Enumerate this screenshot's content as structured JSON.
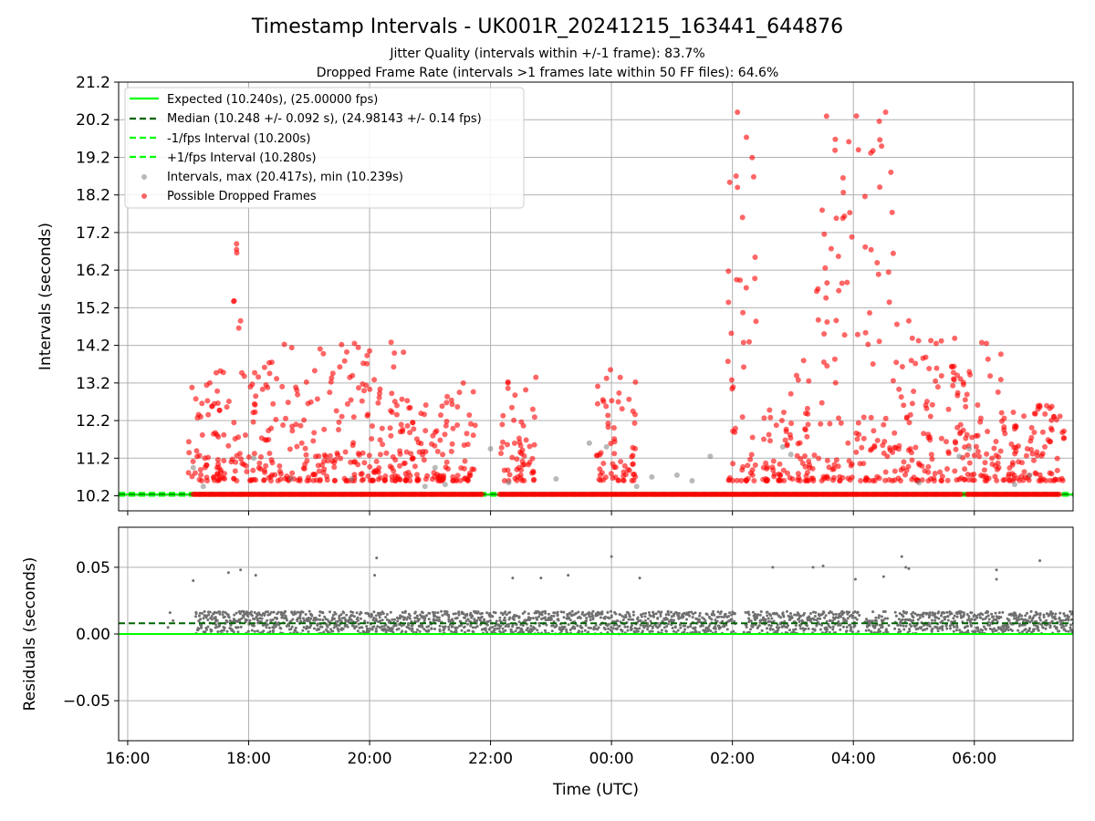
{
  "chart_data": [
    {
      "type": "scatter",
      "title": "Timestamp Intervals - UK001R_20241215_163441_644876",
      "subtitle_1": "Jitter Quality (intervals within +/-1 frame): 83.7%",
      "subtitle_2": "Dropped Frame Rate (intervals >1 frames late within 50 FF files): 64.6%",
      "xlabel": "",
      "ylabel": "Intervals (seconds)",
      "xlim": [
        "15:51",
        "07:38"
      ],
      "ylim": [
        9.8,
        21.2
      ],
      "yticks": [
        "10.2",
        "11.2",
        "12.2",
        "13.2",
        "14.2",
        "15.2",
        "16.2",
        "17.2",
        "18.2",
        "19.2",
        "20.2",
        "21.2"
      ],
      "grid": true,
      "legend_position": "upper-left",
      "legend": [
        "Expected (10.240s), (25.00000 fps)",
        "Median (10.248 +/- 0.092 s), (24.98143 +/- 0.14 fps)",
        "-1/fps Interval (10.200s)",
        "+1/fps Interval (10.280s)",
        "Intervals, max (20.417s), min (10.239s)",
        "Possible Dropped Frames"
      ],
      "reference_lines": [
        {
          "name": "Expected",
          "y": 10.24,
          "color": "#00ff00",
          "style": "solid"
        },
        {
          "name": "Median",
          "y": 10.248,
          "color": "#006400",
          "style": "dashed"
        },
        {
          "name": "-1/fps Interval",
          "y": 10.2,
          "color": "#00ff00",
          "style": "dashed"
        },
        {
          "name": "+1/fps Interval",
          "y": 10.28,
          "color": "#00ff00",
          "style": "dashed"
        }
      ],
      "series_colors": {
        "intervals": "#808080",
        "dropped": "#ff0000"
      },
      "series": [
        {
          "name": "Possible Dropped Frames",
          "bands": [
            {
              "t_start": "17:00",
              "t_end": "17:44",
              "min": 10.6,
              "max": 13.5
            },
            {
              "t_start": "17:44",
              "t_end": "17:56",
              "min": 10.6,
              "max": 16.9
            },
            {
              "t_start": "17:56",
              "t_end": "18:30",
              "min": 10.6,
              "max": 13.8
            },
            {
              "t_start": "18:30",
              "t_end": "20:35",
              "min": 10.6,
              "max": 14.3
            },
            {
              "t_start": "20:35",
              "t_end": "21:45",
              "min": 10.6,
              "max": 13.2
            },
            {
              "t_start": "22:10",
              "t_end": "22:45",
              "min": 10.6,
              "max": 13.4
            },
            {
              "t_start": "23:45",
              "t_end": "00:25",
              "min": 10.6,
              "max": 13.6
            },
            {
              "t_start": "01:55",
              "t_end": "02:25",
              "min": 10.6,
              "max": 20.4
            },
            {
              "t_start": "02:30",
              "t_end": "02:55",
              "min": 10.6,
              "max": 12.5
            },
            {
              "t_start": "02:55",
              "t_end": "03:20",
              "min": 10.6,
              "max": 14.1
            },
            {
              "t_start": "03:20",
              "t_end": "04:40",
              "min": 10.6,
              "max": 20.4
            },
            {
              "t_start": "04:40",
              "t_end": "05:45",
              "min": 10.6,
              "max": 14.9
            },
            {
              "t_start": "05:45",
              "t_end": "06:35",
              "min": 10.6,
              "max": 14.3
            },
            {
              "t_start": "06:35",
              "t_end": "07:30",
              "min": 10.6,
              "max": 12.6
            }
          ],
          "baseline": {
            "y": 10.24,
            "t_start": "17:05",
            "t_end": "07:25"
          },
          "outliers": [
            {
              "t": "17:48",
              "y": 16.75
            },
            {
              "t": "17:48",
              "y": 16.9
            },
            {
              "t": "17:52",
              "y": 14.85
            },
            {
              "t": "17:32",
              "y": 13.52
            },
            {
              "t": "18:23",
              "y": 13.75
            },
            {
              "t": "19:45",
              "y": 14.25
            },
            {
              "t": "20:00",
              "y": 14.05
            },
            {
              "t": "21:33",
              "y": 13.2
            },
            {
              "t": "22:45",
              "y": 13.35
            },
            {
              "t": "23:59",
              "y": 13.55
            },
            {
              "t": "02:05",
              "y": 20.4
            },
            {
              "t": "02:05",
              "y": 18.4
            },
            {
              "t": "02:10",
              "y": 17.6
            },
            {
              "t": "04:03",
              "y": 20.3
            },
            {
              "t": "04:32",
              "y": 20.4
            },
            {
              "t": "04:28",
              "y": 19.5
            },
            {
              "t": "04:05",
              "y": 19.4
            },
            {
              "t": "04:55",
              "y": 14.85
            },
            {
              "t": "06:12",
              "y": 14.25
            },
            {
              "t": "05:55",
              "y": 13.5
            },
            {
              "t": "07:05",
              "y": 12.6
            }
          ]
        },
        {
          "name": "Intervals",
          "points": [
            {
              "t": "17:05",
              "y": 10.95
            },
            {
              "t": "17:15",
              "y": 10.45
            },
            {
              "t": "18:05",
              "y": 11.2
            },
            {
              "t": "18:42",
              "y": 10.65
            },
            {
              "t": "19:42",
              "y": 10.65
            },
            {
              "t": "20:55",
              "y": 10.45
            },
            {
              "t": "21:05",
              "y": 10.95
            },
            {
              "t": "21:15",
              "y": 10.5
            },
            {
              "t": "22:00",
              "y": 11.45
            },
            {
              "t": "22:18",
              "y": 10.55
            },
            {
              "t": "23:05",
              "y": 10.65
            },
            {
              "t": "23:38",
              "y": 11.6
            },
            {
              "t": "23:55",
              "y": 11.5
            },
            {
              "t": "00:25",
              "y": 10.45
            },
            {
              "t": "00:40",
              "y": 10.7
            },
            {
              "t": "01:05",
              "y": 10.75
            },
            {
              "t": "01:20",
              "y": 10.6
            },
            {
              "t": "01:38",
              "y": 11.25
            },
            {
              "t": "02:58",
              "y": 11.3
            },
            {
              "t": "02:50",
              "y": 11.5
            },
            {
              "t": "05:05",
              "y": 10.55
            },
            {
              "t": "05:45",
              "y": 11.25
            },
            {
              "t": "05:55",
              "y": 11.45
            },
            {
              "t": "06:55",
              "y": 10.75
            },
            {
              "t": "06:40",
              "y": 10.5
            }
          ]
        }
      ]
    },
    {
      "type": "scatter",
      "xlabel": "Time (UTC)",
      "ylabel": "Residuals (seconds)",
      "xlim": [
        "15:51",
        "07:38"
      ],
      "ylim": [
        -0.08,
        0.08
      ],
      "yticks": [
        "0.05",
        "0.00",
        "−0.05"
      ],
      "xticks": [
        "16:00",
        "18:00",
        "20:00",
        "22:00",
        "00:00",
        "02:00",
        "04:00",
        "06:00"
      ],
      "grid": true,
      "reference_lines": [
        {
          "name": "Expected",
          "y": 0.0,
          "color": "#00ff00",
          "style": "solid"
        },
        {
          "name": "Median",
          "y": 0.008,
          "color": "#006400",
          "style": "dashed"
        }
      ],
      "series": [
        {
          "name": "Residuals",
          "band": {
            "t_start": "17:05",
            "t_end": "07:38",
            "min": 0.0,
            "max": 0.017
          },
          "gaps": [
            {
              "t_start": "17:00",
              "t_end": "17:07"
            },
            {
              "t_start": "02:03",
              "t_end": "02:12"
            },
            {
              "t_start": "04:05",
              "t_end": "04:12"
            },
            {
              "t_start": "04:35",
              "t_end": "04:41"
            }
          ],
          "outliers": [
            {
              "t": "17:05",
              "y": 0.04
            },
            {
              "t": "17:40",
              "y": 0.046
            },
            {
              "t": "17:52",
              "y": 0.048
            },
            {
              "t": "18:07",
              "y": 0.044
            },
            {
              "t": "20:07",
              "y": 0.057
            },
            {
              "t": "20:05",
              "y": 0.044
            },
            {
              "t": "22:22",
              "y": 0.042
            },
            {
              "t": "22:50",
              "y": 0.042
            },
            {
              "t": "23:17",
              "y": 0.044
            },
            {
              "t": "00:00",
              "y": 0.058
            },
            {
              "t": "00:28",
              "y": 0.042
            },
            {
              "t": "02:40",
              "y": 0.05
            },
            {
              "t": "03:20",
              "y": 0.05
            },
            {
              "t": "03:30",
              "y": 0.051
            },
            {
              "t": "04:02",
              "y": 0.041
            },
            {
              "t": "04:30",
              "y": 0.043
            },
            {
              "t": "04:48",
              "y": 0.058
            },
            {
              "t": "04:52",
              "y": 0.05
            },
            {
              "t": "04:55",
              "y": 0.049
            },
            {
              "t": "06:22",
              "y": 0.048
            },
            {
              "t": "06:22",
              "y": 0.041
            },
            {
              "t": "07:05",
              "y": 0.055
            },
            {
              "t": "16:42",
              "y": 0.016
            },
            {
              "t": "16:40",
              "y": 0.005
            },
            {
              "t": "16:45",
              "y": 0.01
            }
          ]
        }
      ]
    }
  ]
}
